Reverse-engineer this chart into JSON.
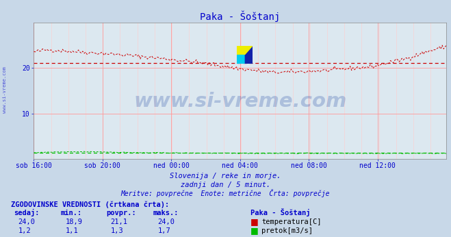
{
  "title": "Paka - Šoštanj",
  "bg_color": "#c8d8e8",
  "plot_bg_color": "#dce8f0",
  "grid_color_major": "#ff9999",
  "grid_color_minor": "#ffcccc",
  "x_labels": [
    "sob 16:00",
    "sob 20:00",
    "ned 00:00",
    "ned 04:00",
    "ned 08:00",
    "ned 12:00"
  ],
  "y_min": 0,
  "y_max": 30,
  "y_ticks": [
    10,
    20
  ],
  "subtitle1": "Slovenija / reke in morje.",
  "subtitle2": "zadnji dan / 5 minut.",
  "subtitle3": "Meritve: povprečne  Enote: metrične  Črta: povprečje",
  "table_header": "ZGODOVINSKE VREDNOSTI (črtkana črta):",
  "col_headers": [
    "sedaj:",
    "min.:",
    "povpr.:",
    "maks.:"
  ],
  "row1_vals": [
    "24,0",
    "18,9",
    "21,1",
    "24,0"
  ],
  "row2_vals": [
    "1,2",
    "1,1",
    "1,3",
    "1,7"
  ],
  "row1_label": "temperatura[C]",
  "row2_label": "pretok[m3/s]",
  "station_label": "Paka - Šoštanj",
  "temp_color": "#cc0000",
  "flow_color": "#00bb00",
  "avg_temp": 21.1,
  "avg_flow": 1.3,
  "watermark": "www.si-vreme.com",
  "watermark_color": "#3355aa",
  "watermark_alpha": 0.28,
  "n_points": 288,
  "label_color": "#0000cc",
  "tick_color": "#0000cc",
  "left_text": "www.si-vreme.com"
}
